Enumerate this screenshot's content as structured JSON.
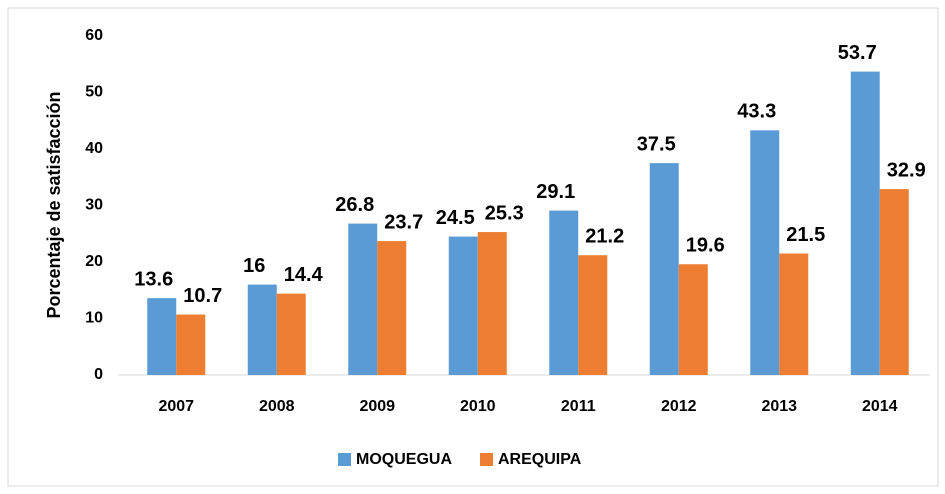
{
  "chart_data": {
    "type": "bar",
    "categories": [
      "2007",
      "2008",
      "2009",
      "2010",
      "2011",
      "2012",
      "2013",
      "2014"
    ],
    "series": [
      {
        "name": "MOQUEGUA",
        "color": "#5b9bd5",
        "values": [
          13.6,
          16,
          26.8,
          24.5,
          29.1,
          37.5,
          43.3,
          53.7
        ]
      },
      {
        "name": "AREQUIPA",
        "color": "#ed7d31",
        "values": [
          10.7,
          14.4,
          23.7,
          25.3,
          21.2,
          19.6,
          21.5,
          32.9
        ]
      }
    ],
    "y_label": "Porcentaje de satisfacción",
    "ylim": [
      0,
      60
    ],
    "yticks": [
      0,
      10,
      20,
      30,
      40,
      50,
      60
    ],
    "grid": false,
    "legend": "bottom"
  }
}
